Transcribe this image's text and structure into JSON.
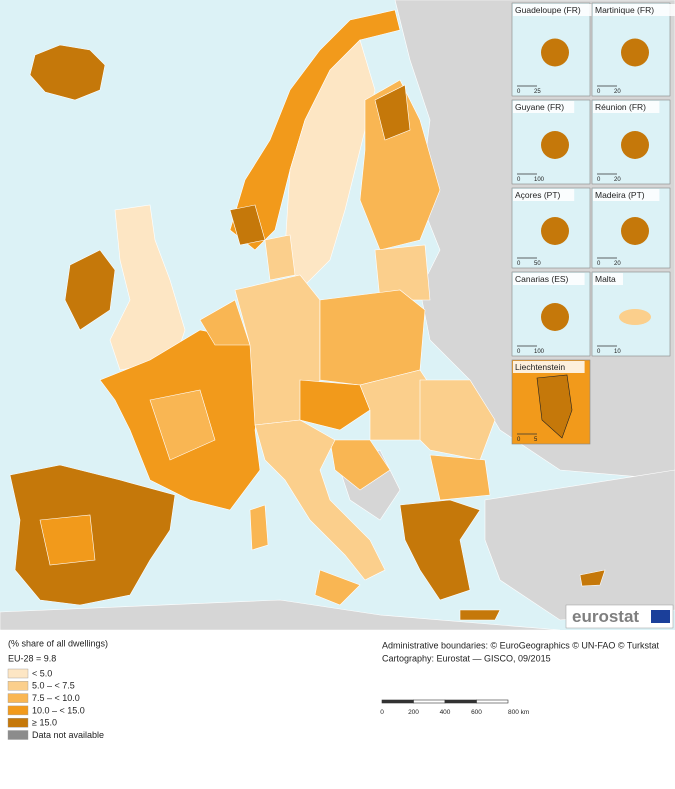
{
  "insets": [
    {
      "label": "Guadeloupe (FR)",
      "scale": [
        "0",
        "25"
      ]
    },
    {
      "label": "Martinique (FR)",
      "scale": [
        "0",
        "20"
      ]
    },
    {
      "label": "Guyane (FR)",
      "scale": [
        "0",
        "100"
      ]
    },
    {
      "label": "Réunion (FR)",
      "scale": [
        "0",
        "20"
      ]
    },
    {
      "label": "Açores (PT)",
      "scale": [
        "0",
        "50"
      ]
    },
    {
      "label": "Madeira (PT)",
      "scale": [
        "0",
        "20"
      ]
    },
    {
      "label": "Canarias (ES)",
      "scale": [
        "0",
        "100"
      ]
    },
    {
      "label": "Malta",
      "scale": [
        "0",
        "10"
      ]
    },
    {
      "label": "Liechtenstein",
      "scale": [
        "0",
        "5"
      ]
    }
  ],
  "logo": "eurostat",
  "legend": {
    "title": "(% share of all dwellings)",
    "subtitle": "EU-28 = 9.8",
    "classes": [
      {
        "label": "< 5.0",
        "color": "#fde6c4"
      },
      {
        "label": "5.0 – < 7.5",
        "color": "#fbcf8c"
      },
      {
        "label": "7.5 – < 10.0",
        "color": "#f9b653"
      },
      {
        "label": "10.0 – < 15.0",
        "color": "#f29a1b"
      },
      {
        "label": "≥ 15.0",
        "color": "#c5780a"
      },
      {
        "label": "Data not available",
        "color": "#8c8c8c"
      }
    ]
  },
  "credits": [
    "Administrative boundaries: © EuroGeographics © UN-FAO © Turkstat",
    "Cartography: Eurostat — GISCO, 09/2015"
  ],
  "scale_bar": {
    "labels": [
      "0",
      "200",
      "400",
      "600",
      "800 km"
    ]
  }
}
